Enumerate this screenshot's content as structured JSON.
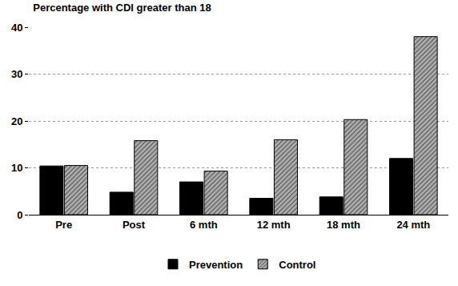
{
  "chart_data": {
    "type": "bar",
    "title": "Percentage with CDI greater than 18",
    "categories": [
      "Pre",
      "Post",
      "6 mth",
      "12 mth",
      "18 mth",
      "24 mth"
    ],
    "series": [
      {
        "name": "Prevention",
        "color": "#000000",
        "values": [
          10.4,
          4.8,
          7.0,
          3.5,
          3.8,
          12.0
        ]
      },
      {
        "name": "Control",
        "color": "#b0b0b0",
        "marker": "hatched",
        "values": [
          10.5,
          15.8,
          9.3,
          16.0,
          20.3,
          38.0
        ]
      }
    ],
    "ylim": [
      0,
      40
    ],
    "yticks": [
      0,
      10,
      20,
      30,
      40
    ],
    "grid": true,
    "legend": "bottom"
  }
}
